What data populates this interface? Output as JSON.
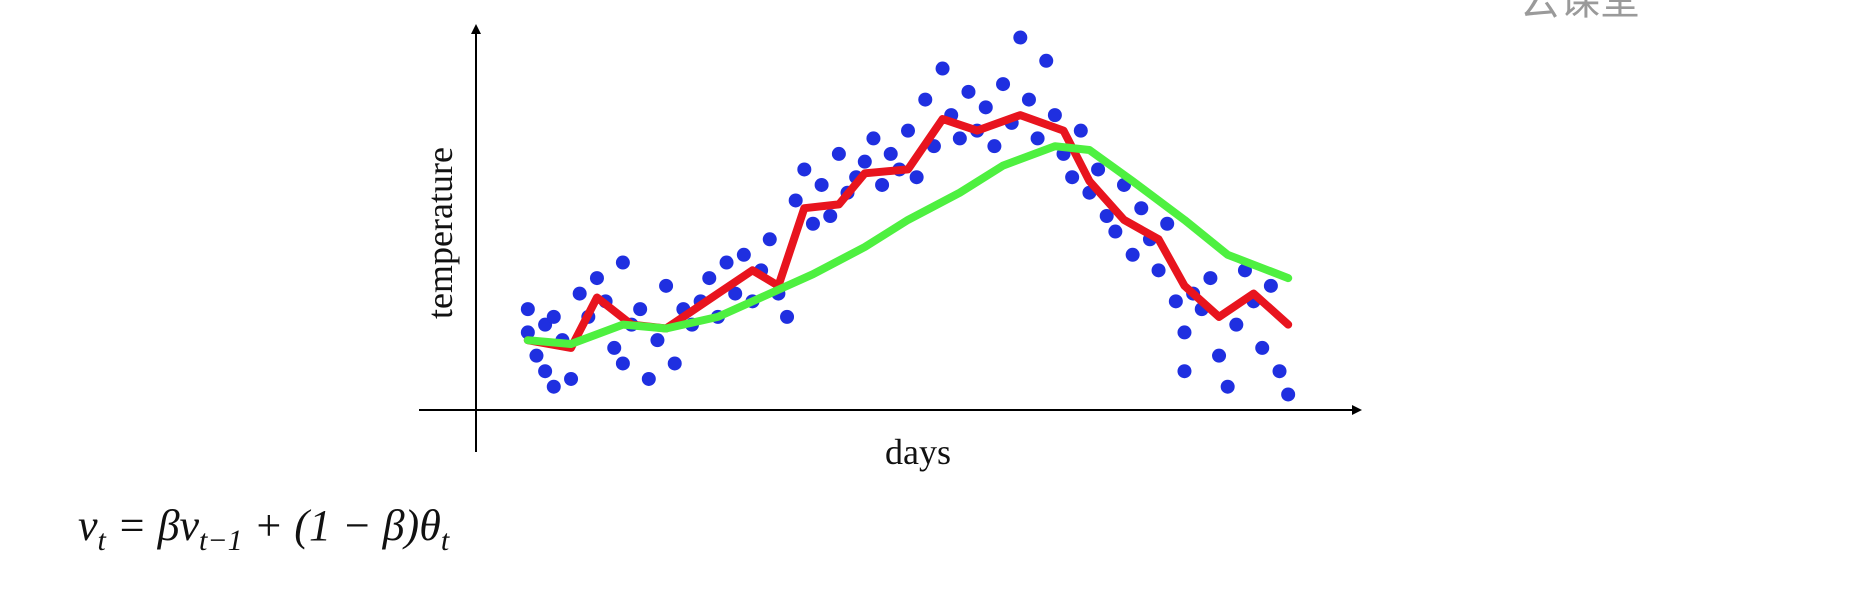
{
  "watermark": "云课堂",
  "chart_data": {
    "type": "scatter",
    "xlabel": "days",
    "ylabel": "temperature",
    "xlim": [
      0,
      100
    ],
    "ylim": [
      0,
      100
    ],
    "formula": [
      {
        "text": "v",
        "sub": "t"
      },
      {
        "text": " = βv",
        "sub": "t−1"
      },
      {
        "text": " + (1 − β)θ",
        "sub": "t"
      }
    ],
    "series": [
      {
        "type": "scatter",
        "color": "#1f2fe0",
        "x": [
          6,
          6,
          7,
          8,
          8,
          9,
          9,
          10,
          11,
          12,
          13,
          14,
          15,
          16,
          17,
          17,
          18,
          19,
          20,
          21,
          22,
          23,
          24,
          25,
          26,
          27,
          28,
          29,
          30,
          31,
          32,
          33,
          34,
          35,
          36,
          37,
          38,
          39,
          40,
          41,
          42,
          43,
          44,
          45,
          46,
          47,
          48,
          49,
          50,
          51,
          52,
          53,
          54,
          55,
          56,
          57,
          58,
          59,
          60,
          61,
          62,
          63,
          64,
          65,
          66,
          67,
          68,
          69,
          70,
          71,
          72,
          73,
          74,
          75,
          76,
          77,
          78,
          79,
          80,
          81,
          82,
          82,
          83,
          84,
          85,
          86,
          87,
          88,
          89,
          90,
          91,
          92,
          93,
          94
        ],
        "values": [
          20,
          26,
          14,
          22,
          10,
          6,
          24,
          18,
          8,
          30,
          24,
          34,
          28,
          16,
          38,
          12,
          22,
          26,
          8,
          18,
          32,
          12,
          26,
          22,
          28,
          34,
          24,
          38,
          30,
          40,
          28,
          36,
          44,
          30,
          24,
          54,
          62,
          48,
          58,
          50,
          66,
          56,
          60,
          64,
          70,
          58,
          66,
          62,
          72,
          60,
          80,
          68,
          88,
          76,
          70,
          82,
          72,
          78,
          68,
          84,
          74,
          96,
          80,
          70,
          90,
          76,
          66,
          60,
          72,
          56,
          62,
          50,
          46,
          58,
          40,
          52,
          44,
          36,
          48,
          28,
          20,
          10,
          30,
          26,
          34,
          14,
          6,
          22,
          36,
          28,
          16,
          32,
          10,
          4
        ]
      },
      {
        "type": "line",
        "color": "#e8141e",
        "x": [
          6,
          11,
          14,
          18,
          22,
          28,
          32,
          35,
          38,
          42,
          45,
          50,
          54,
          58,
          63,
          68,
          71,
          75,
          79,
          82,
          86,
          90,
          94
        ],
        "values": [
          18,
          16,
          29,
          22,
          21,
          30,
          36,
          32,
          52,
          53,
          61,
          62,
          75,
          72,
          76,
          72,
          59,
          49,
          44,
          32,
          24,
          30,
          22
        ]
      },
      {
        "type": "line",
        "color": "#4ef040",
        "x": [
          6,
          11,
          17,
          22,
          28,
          33,
          39,
          45,
          50,
          56,
          61,
          67,
          71,
          76,
          82,
          87,
          94
        ],
        "values": [
          18,
          17,
          22,
          21,
          24,
          29,
          35,
          42,
          49,
          56,
          63,
          68,
          67,
          59,
          49,
          40,
          34
        ]
      }
    ]
  }
}
